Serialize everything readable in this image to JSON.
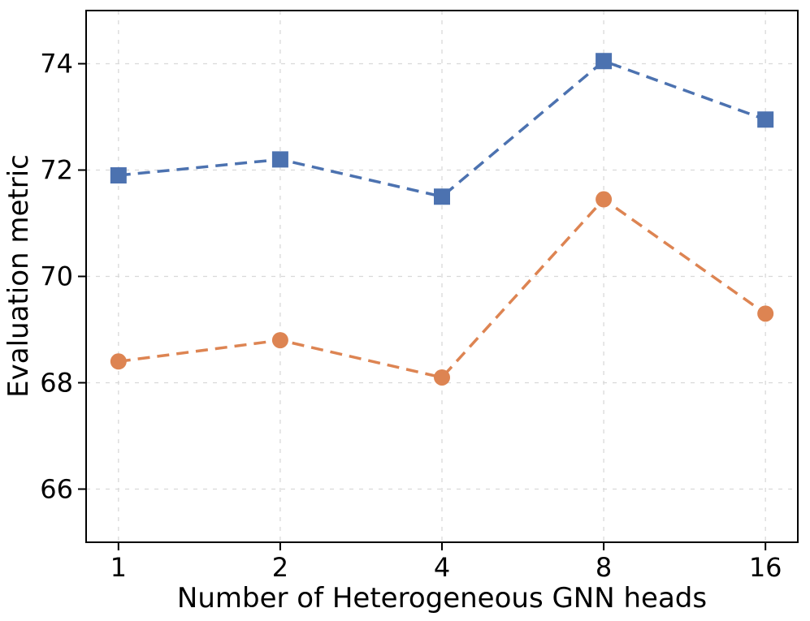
{
  "chart_data": {
    "type": "line",
    "title": "",
    "xlabel": "Number of Heterogeneous GNN heads",
    "ylabel": "Evaluation metric",
    "x": [
      1,
      2,
      4,
      8,
      16
    ],
    "xscale": "log2",
    "xtick_labels": [
      "1",
      "2",
      "4",
      "8",
      "16"
    ],
    "yticks": [
      66,
      68,
      70,
      72,
      74
    ],
    "ylim": [
      65,
      75
    ],
    "xlim_log2": [
      -0.2,
      4.2
    ],
    "grid": true,
    "grid_style": "dashed",
    "legend": "none",
    "series": [
      {
        "name": "blue-squares",
        "marker": "square",
        "color": "#4C72B0",
        "linestyle": "dashed",
        "values": [
          71.9,
          72.2,
          71.5,
          74.05,
          72.95
        ]
      },
      {
        "name": "orange-circles",
        "marker": "circle",
        "color": "#DD8452",
        "linestyle": "dashed",
        "values": [
          68.4,
          68.8,
          68.1,
          71.45,
          69.3
        ]
      }
    ],
    "colors": {
      "grid": "#d9d9d9",
      "spine": "#000000",
      "text": "#000000",
      "background": "#ffffff"
    }
  }
}
